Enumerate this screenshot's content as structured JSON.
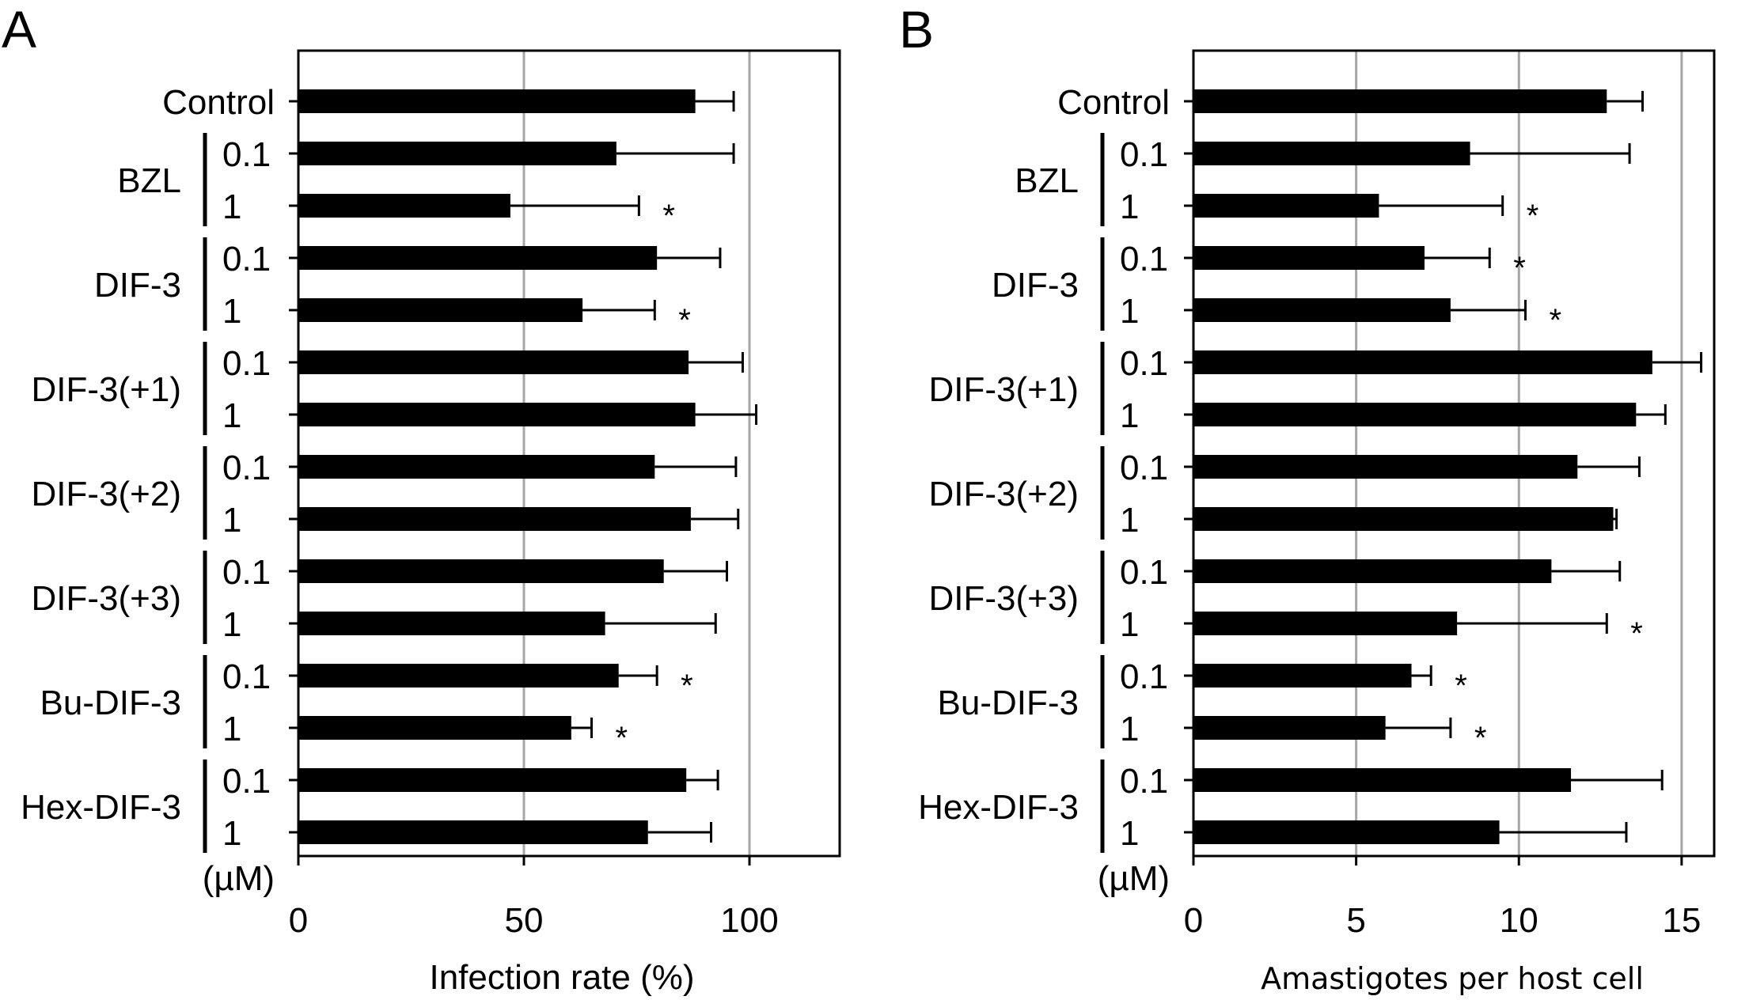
{
  "unit_label": "(µM)",
  "chart_data": [
    {
      "type": "bar",
      "orientation": "horizontal",
      "panel": "A",
      "xlabel": "Infection rate (%)",
      "xlim": [
        0,
        120
      ],
      "xticks": [
        0,
        50,
        100
      ],
      "gridlines": [
        50,
        100
      ],
      "categories": [
        {
          "group": "Control",
          "dose": ""
        },
        {
          "group": "BZL",
          "dose": "0.1"
        },
        {
          "group": "BZL",
          "dose": "1"
        },
        {
          "group": "DIF-3",
          "dose": "0.1"
        },
        {
          "group": "DIF-3",
          "dose": "1"
        },
        {
          "group": "DIF-3(+1)",
          "dose": "0.1"
        },
        {
          "group": "DIF-3(+1)",
          "dose": "1"
        },
        {
          "group": "DIF-3(+2)",
          "dose": "0.1"
        },
        {
          "group": "DIF-3(+2)",
          "dose": "1"
        },
        {
          "group": "DIF-3(+3)",
          "dose": "0.1"
        },
        {
          "group": "DIF-3(+3)",
          "dose": "1"
        },
        {
          "group": "Bu-DIF-3",
          "dose": "0.1"
        },
        {
          "group": "Bu-DIF-3",
          "dose": "1"
        },
        {
          "group": "Hex-DIF-3",
          "dose": "0.1"
        },
        {
          "group": "Hex-DIF-3",
          "dose": "1"
        }
      ],
      "values": [
        88,
        70.5,
        47,
        79.5,
        63,
        86.5,
        88,
        79,
        87,
        81,
        68,
        71,
        60.5,
        86,
        77.5
      ],
      "errors": [
        8.5,
        26,
        28.5,
        14,
        16,
        12,
        13.5,
        18,
        10.5,
        14,
        24.5,
        8.5,
        4.5,
        7,
        14
      ],
      "significant": [
        false,
        false,
        true,
        false,
        true,
        false,
        false,
        false,
        false,
        false,
        false,
        true,
        true,
        false,
        false
      ],
      "significance_marker": "*"
    },
    {
      "type": "bar",
      "orientation": "horizontal",
      "panel": "B",
      "xlabel": "Amastigotes per host cell",
      "xlim": [
        0,
        16
      ],
      "xticks": [
        0,
        5,
        10,
        15
      ],
      "gridlines": [
        5,
        10,
        15
      ],
      "categories": [
        {
          "group": "Control",
          "dose": ""
        },
        {
          "group": "BZL",
          "dose": "0.1"
        },
        {
          "group": "BZL",
          "dose": "1"
        },
        {
          "group": "DIF-3",
          "dose": "0.1"
        },
        {
          "group": "DIF-3",
          "dose": "1"
        },
        {
          "group": "DIF-3(+1)",
          "dose": "0.1"
        },
        {
          "group": "DIF-3(+1)",
          "dose": "1"
        },
        {
          "group": "DIF-3(+2)",
          "dose": "0.1"
        },
        {
          "group": "DIF-3(+2)",
          "dose": "1"
        },
        {
          "group": "DIF-3(+3)",
          "dose": "0.1"
        },
        {
          "group": "DIF-3(+3)",
          "dose": "1"
        },
        {
          "group": "Bu-DIF-3",
          "dose": "0.1"
        },
        {
          "group": "Bu-DIF-3",
          "dose": "1"
        },
        {
          "group": "Hex-DIF-3",
          "dose": "0.1"
        },
        {
          "group": "Hex-DIF-3",
          "dose": "1"
        }
      ],
      "values": [
        12.7,
        8.5,
        5.7,
        7.1,
        7.9,
        14.1,
        13.6,
        11.8,
        12.9,
        11,
        8.1,
        6.7,
        5.9,
        11.6,
        9.4
      ],
      "errors": [
        1.1,
        4.9,
        3.8,
        2,
        2.3,
        1.5,
        0.9,
        1.9,
        0.1,
        2.1,
        4.6,
        0.6,
        2,
        2.8,
        3.9
      ],
      "significant": [
        false,
        false,
        true,
        true,
        true,
        false,
        false,
        false,
        false,
        false,
        true,
        true,
        true,
        false,
        false
      ],
      "significance_marker": "*"
    }
  ]
}
